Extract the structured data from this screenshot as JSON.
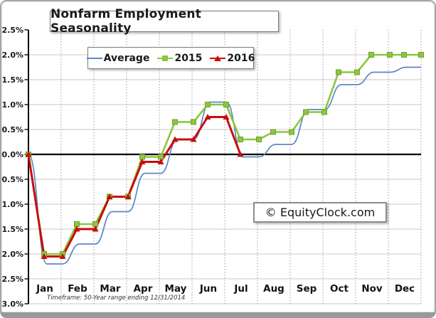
{
  "title": "Nonfarm Employment Seasonality",
  "watermark": "© EquityClock.com",
  "footnote": "Timeframe: 50-Year range ending 12/31/2014",
  "legend": {
    "items": [
      {
        "name": "Average",
        "color": "#5b87c5",
        "marker": "none"
      },
      {
        "name": "2015",
        "color": "#8cc63f",
        "marker": "square"
      },
      {
        "name": "2016",
        "color": "#c90d0d",
        "marker": "triangle"
      }
    ]
  },
  "colors": {
    "average": "#5b87c5",
    "y2015": "#8cc63f",
    "y2015_marker_edge": "#6da32c",
    "y2016": "#c90d0d",
    "grid": "#c8c8c8",
    "grid_dotted": "#999999",
    "axis": "#000000",
    "text": "#1a1a1a"
  },
  "chart_data": {
    "type": "line",
    "title": "Nonfarm Employment Seasonality",
    "categories": [
      "Jan",
      "Feb",
      "Mar",
      "Apr",
      "May",
      "Jun",
      "Jul",
      "Aug",
      "Sep",
      "Oct",
      "Nov",
      "Dec"
    ],
    "y_axis": {
      "min": -3.0,
      "max": 2.5,
      "step": 0.5,
      "unit": "%",
      "tick_labels": [
        "2.5%",
        "2.0%",
        "1.5%",
        "1.0%",
        "0.5%",
        "0.0%",
        "-0.5%",
        "-1.0%",
        "-1.5%",
        "-2.0%",
        "-2.5%",
        "-3.0%"
      ]
    },
    "grid": true,
    "zero_line": true,
    "legend_position": "top-left-inside",
    "series": [
      {
        "name": "Average",
        "style": "smooth",
        "marker": "none",
        "start": 0.0,
        "values": [
          -2.2,
          -1.8,
          -1.15,
          -0.38,
          0.3,
          1.05,
          -0.05,
          0.2,
          0.9,
          1.4,
          1.65,
          1.75
        ]
      },
      {
        "name": "2015",
        "style": "step",
        "marker": "square",
        "start": 0.0,
        "values": [
          -2.0,
          -1.4,
          -0.85,
          -0.05,
          0.65,
          1.0,
          0.3,
          0.45,
          0.85,
          1.65,
          2.0,
          2.0
        ]
      },
      {
        "name": "2016",
        "style": "step",
        "marker": "triangle",
        "start": 0.0,
        "ends_at_transition": true,
        "values": [
          -2.05,
          -1.5,
          -0.85,
          -0.15,
          0.3,
          0.75,
          0.0
        ]
      }
    ]
  }
}
